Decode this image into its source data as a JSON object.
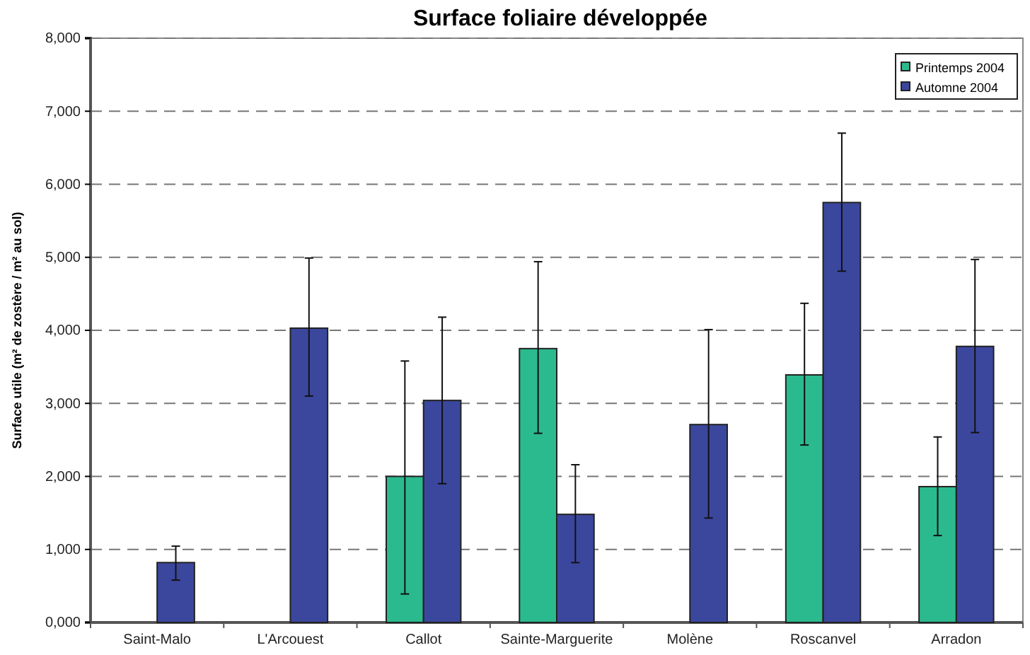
{
  "chart_data": {
    "type": "bar",
    "title": "Surface foliaire développée",
    "ylabel": "Surface utile (m² de zostère / m² au sol)",
    "categories": [
      "Saint-Malo",
      "L'Arcouest",
      "Callot",
      "Sainte-Marguerite",
      "Molène",
      "Roscanvel",
      "Arradon"
    ],
    "series": [
      {
        "name": "Printemps 2004",
        "color": "#2bba8d",
        "values": [
          null,
          null,
          2000,
          3750,
          null,
          3390,
          1860
        ],
        "errors": [
          null,
          null,
          [
            390,
            3580
          ],
          [
            2590,
            4940
          ],
          null,
          [
            2430,
            4370
          ],
          [
            1190,
            2540
          ]
        ]
      },
      {
        "name": "Automne 2004",
        "color": "#3b479d",
        "values": [
          820,
          4030,
          3040,
          1480,
          2710,
          5750,
          3780
        ],
        "errors": [
          [
            580,
            1045
          ],
          [
            3100,
            4990
          ],
          [
            1900,
            4180
          ],
          [
            820,
            2160
          ],
          [
            1430,
            4010
          ],
          [
            4810,
            6700
          ],
          [
            2600,
            4970
          ]
        ]
      }
    ],
    "ylim": [
      0,
      8000
    ],
    "yticks": [
      {
        "value": 0,
        "label": "0,000"
      },
      {
        "value": 1000,
        "label": "1,000"
      },
      {
        "value": 2000,
        "label": "2,000"
      },
      {
        "value": 3000,
        "label": "3,000"
      },
      {
        "value": 4000,
        "label": "4,000"
      },
      {
        "value": 5000,
        "label": "5,000"
      },
      {
        "value": 6000,
        "label": "6,000"
      },
      {
        "value": 7000,
        "label": "7,000"
      },
      {
        "value": 8000,
        "label": "8,000"
      }
    ],
    "grid": "y",
    "legend": "top right"
  }
}
